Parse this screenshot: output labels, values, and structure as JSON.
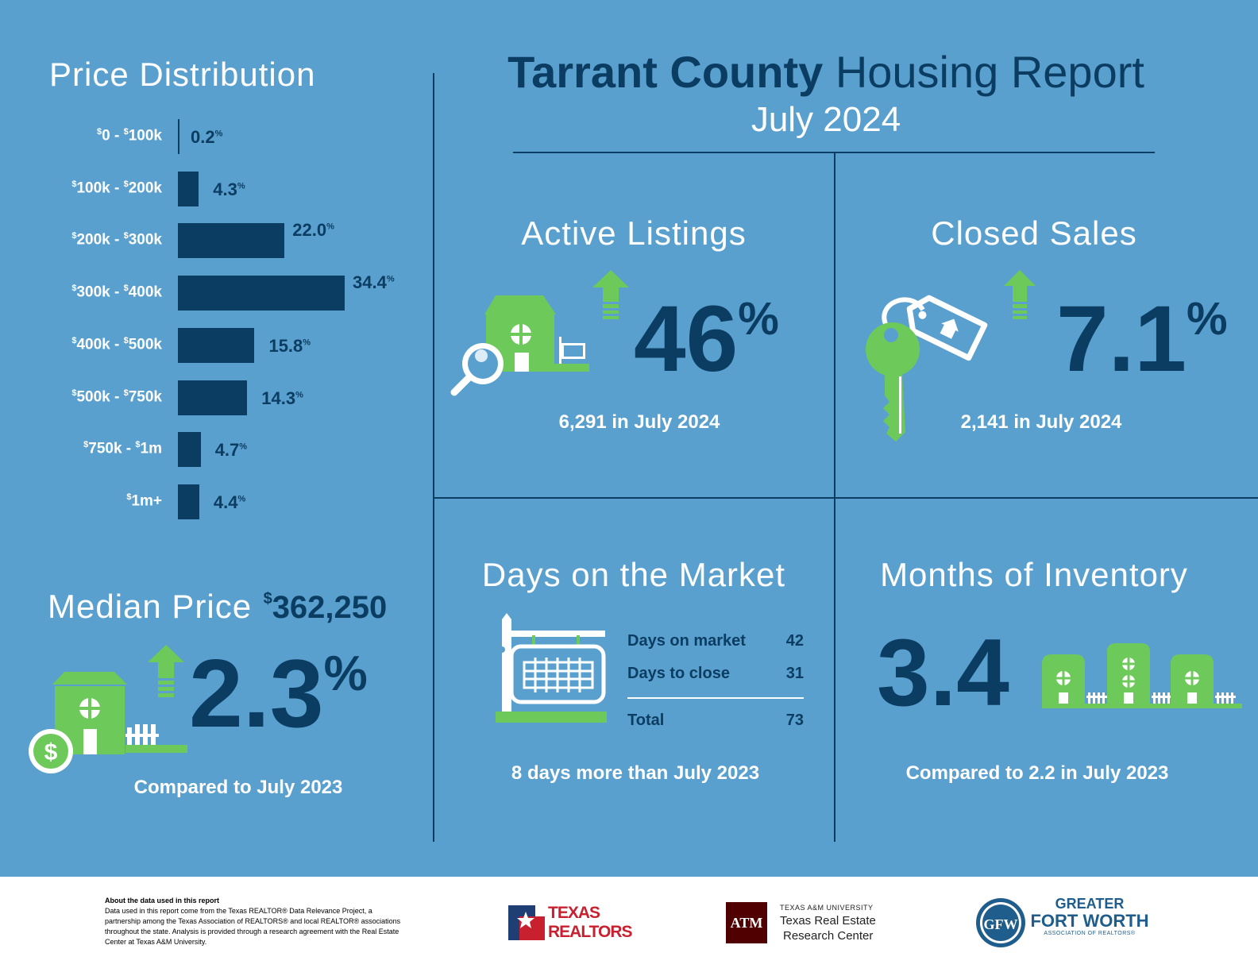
{
  "header": {
    "title_bold": "Tarrant County",
    "title_light": "Housing Report",
    "date": "July 2024"
  },
  "price_distribution": {
    "title": "Price Distribution"
  },
  "chart_data": {
    "type": "bar",
    "orientation": "horizontal",
    "title": "Price Distribution",
    "categories": [
      "$0 - $100k",
      "$100k - $200k",
      "$200k - $300k",
      "$300k - $400k",
      "$400k - $500k",
      "$500k - $750k",
      "$750k - $1m",
      "$1m+"
    ],
    "values": [
      0.2,
      4.3,
      22.0,
      34.4,
      15.8,
      14.3,
      4.7,
      4.4
    ],
    "value_labels": [
      "0.2",
      "4.3",
      "22.0",
      "34.4",
      "15.8",
      "14.3",
      "4.7",
      "4.4"
    ],
    "unit": "%",
    "xlim": [
      0,
      34.4
    ]
  },
  "median_price": {
    "label": "Median Price",
    "currency": "$",
    "value": "362,250",
    "change": "2.3",
    "unit": "%",
    "caption": "Compared to July 2023",
    "trend": "up"
  },
  "active_listings": {
    "title": "Active Listings",
    "change": "46",
    "unit": "%",
    "caption": "6,291 in July 2024",
    "trend": "up"
  },
  "closed_sales": {
    "title": "Closed Sales",
    "change": "7.1",
    "unit": "%",
    "caption": "2,141 in July 2024",
    "trend": "up"
  },
  "days_on_market": {
    "title": "Days on the Market",
    "rows": [
      {
        "label": "Days on market",
        "value": "42"
      },
      {
        "label": "Days to close",
        "value": "31"
      }
    ],
    "total": {
      "label": "Total",
      "value": "73"
    },
    "caption": "8 days more than July 2023"
  },
  "months_inventory": {
    "title": "Months of Inventory",
    "value": "3.4",
    "caption": "Compared to 2.2 in July 2023"
  },
  "footer": {
    "note_title": "About the data used in this report",
    "note_body": "Data used in this report come from the Texas REALTOR® Data Relevance Project, a partnership among the Texas Association of REALTORS® and local REALTOR® associations throughout the state. Analysis is provided through a research agreement with the Real Estate Center at Texas A&M University.",
    "texas_realtors": [
      "TEXAS",
      "REALTORS"
    ],
    "tamu_small": "TEXAS A&M UNIVERSITY",
    "tamu_name": [
      "Texas Real Estate",
      "Research Center"
    ],
    "tamu_mark": "ATM",
    "gfw": [
      "GREATER",
      "FORT WORTH",
      "ASSOCIATION OF REALTORS®"
    ],
    "gfw_mark": "GFW"
  },
  "colors": {
    "background": "#5aa0ce",
    "navy": "#0b3d63",
    "green": "#6cc95a",
    "red": "#c8202f",
    "maroon": "#500000"
  }
}
